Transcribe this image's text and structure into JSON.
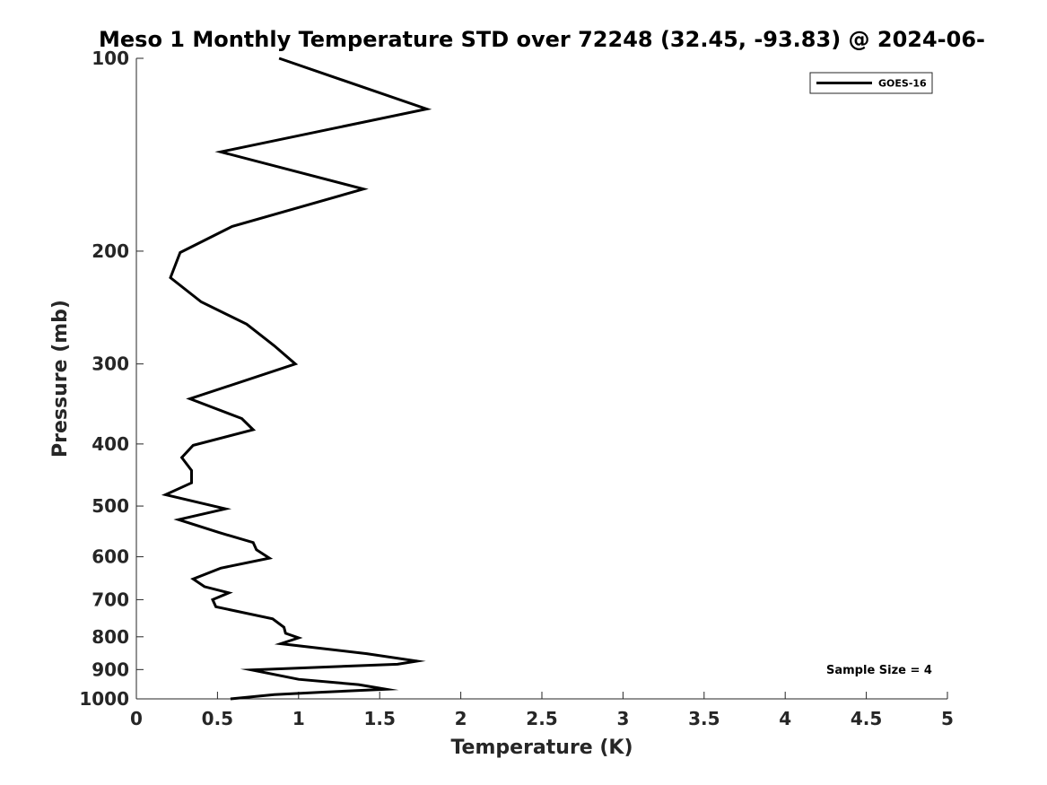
{
  "chart_data": {
    "type": "line",
    "title": "Meso 1 Monthly Temperature STD over 72248 (32.45, -93.83) @ 2024-06-",
    "xlabel": "Temperature (K)",
    "ylabel": "Pressure (mb)",
    "xlim": [
      0,
      5
    ],
    "ylim": [
      1000,
      100
    ],
    "yscale": "log",
    "y_reversed": true,
    "grid": false,
    "legend_position": "top-right",
    "xticks": [
      "0",
      "0.5",
      "1",
      "1.5",
      "2",
      "2.5",
      "3",
      "3.5",
      "4",
      "4.5",
      "5"
    ],
    "xtick_values": [
      0,
      0.5,
      1,
      1.5,
      2,
      2.5,
      3,
      3.5,
      4,
      4.5,
      5
    ],
    "yticks": [
      "100",
      "200",
      "300",
      "400",
      "500",
      "600",
      "700",
      "800",
      "900",
      "1000"
    ],
    "ytick_values": [
      100,
      200,
      300,
      400,
      500,
      600,
      700,
      800,
      900,
      1000
    ],
    "series": [
      {
        "name": "GOES-16",
        "color": "#000000",
        "points": [
          [
            0.88,
            100
          ],
          [
            1.79,
            120
          ],
          [
            0.52,
            140
          ],
          [
            1.4,
            160
          ],
          [
            0.59,
            183
          ],
          [
            0.27,
            201
          ],
          [
            0.21,
            220
          ],
          [
            0.4,
            240
          ],
          [
            0.68,
            260
          ],
          [
            0.85,
            281
          ],
          [
            0.98,
            300
          ],
          [
            0.33,
            340
          ],
          [
            0.65,
            365
          ],
          [
            0.72,
            380
          ],
          [
            0.35,
            402
          ],
          [
            0.28,
            420
          ],
          [
            0.34,
            440
          ],
          [
            0.34,
            460
          ],
          [
            0.18,
            480
          ],
          [
            0.55,
            505
          ],
          [
            0.26,
            525
          ],
          [
            0.51,
            550
          ],
          [
            0.72,
            570
          ],
          [
            0.74,
            585
          ],
          [
            0.82,
            603
          ],
          [
            0.52,
            625
          ],
          [
            0.35,
            650
          ],
          [
            0.42,
            668
          ],
          [
            0.57,
            683
          ],
          [
            0.47,
            700
          ],
          [
            0.49,
            718
          ],
          [
            0.84,
            750
          ],
          [
            0.91,
            773
          ],
          [
            0.92,
            790
          ],
          [
            1.0,
            803
          ],
          [
            0.89,
            820
          ],
          [
            1.42,
            850
          ],
          [
            1.73,
            873
          ],
          [
            1.61,
            883
          ],
          [
            0.71,
            901
          ],
          [
            1.0,
            932
          ],
          [
            1.37,
            950
          ],
          [
            1.54,
            966
          ],
          [
            1.15,
            976
          ],
          [
            0.85,
            985
          ],
          [
            0.58,
            1000
          ]
        ]
      }
    ],
    "annotations": [
      "Sample Size = 4"
    ]
  }
}
